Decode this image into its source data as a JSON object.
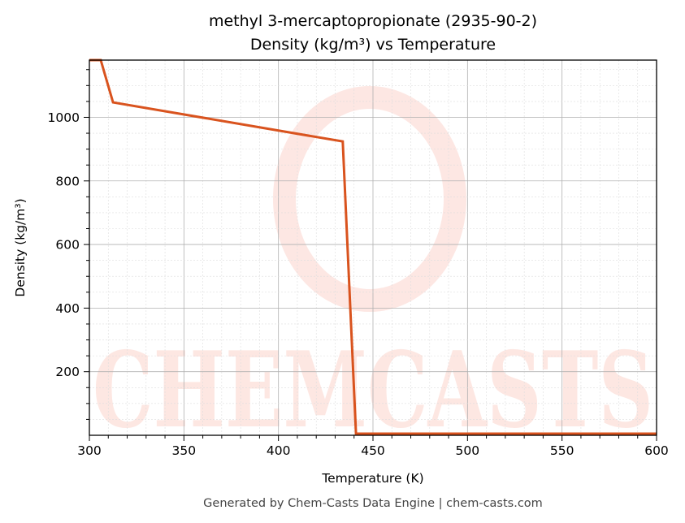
{
  "title_line1": "methyl 3-mercaptopropionate (2935-90-2)",
  "title_line2": "Density (kg/m³) vs Temperature",
  "footer": "Generated by Chem-Casts Data Engine | chem-casts.com",
  "watermark_text": "CHEMCASTS",
  "colors": {
    "line": "#d9531e",
    "axis": "#000000",
    "watermark": "#fcd4cc"
  },
  "chart_data": {
    "type": "line",
    "title": "methyl 3-mercaptopropionate (2935-90-2) Density (kg/m³) vs Temperature",
    "xlabel": "Temperature (K)",
    "ylabel": "Density (kg/m³)",
    "xlim": [
      300,
      600
    ],
    "ylim": [
      0,
      1180
    ],
    "grid": true,
    "x_ticks": [
      300,
      350,
      400,
      450,
      500,
      550,
      600
    ],
    "y_ticks": [
      200,
      400,
      600,
      800,
      1000
    ],
    "series": [
      {
        "name": "Density",
        "x": [
          300,
          306,
          312.5,
          434,
          441,
          600
        ],
        "y": [
          1180,
          1180,
          1047,
          924,
          5,
          5
        ]
      }
    ]
  }
}
